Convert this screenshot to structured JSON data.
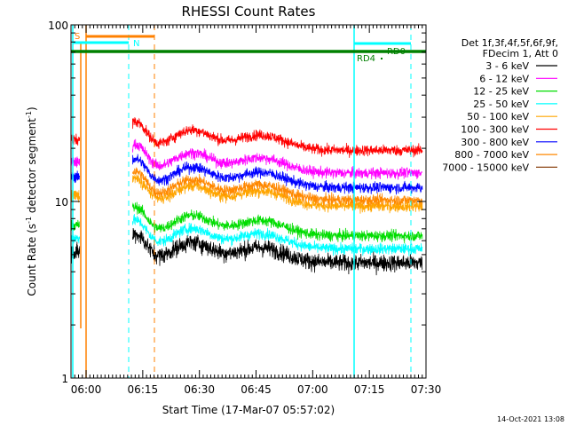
{
  "chart_data": {
    "type": "line",
    "title": "RHESSI Count Rates",
    "xlabel": "Start Time (17-Mar-07 05:57:02)",
    "ylabel_main": "Count Rate (s",
    "ylabel_sup1": "-1",
    "ylabel_mid": " detector segment",
    "ylabel_sup2": "-1",
    "ylabel_end": ")",
    "y_scale": "log",
    "ylim": [
      1,
      100
    ],
    "y_ticks": [
      {
        "value": 1,
        "label": "1"
      },
      {
        "value": 10,
        "label": "10"
      },
      {
        "value": 100,
        "label": "100"
      }
    ],
    "x_range_min": [
      356,
      450
    ],
    "x_ticks": [
      {
        "min": 360,
        "label": "06:00"
      },
      {
        "min": 375,
        "label": "06:15"
      },
      {
        "min": 390,
        "label": "06:30"
      },
      {
        "min": 405,
        "label": "06:45"
      },
      {
        "min": 420,
        "label": "07:00"
      },
      {
        "min": 435,
        "label": "07:15"
      },
      {
        "min": 450,
        "label": "07:30"
      }
    ],
    "legend_header": [
      "Det 1f,3f,4f,5f,6f,9f,",
      "FDecim 1, Att 0"
    ],
    "series": [
      {
        "name": "3 - 6 keV",
        "color": "#000000",
        "level": 4.5
      },
      {
        "name": "6 - 12 keV",
        "color": "#ff00ff",
        "level": 14.5
      },
      {
        "name": "12 - 25 keV",
        "color": "#00dd00",
        "level": 6.4
      },
      {
        "name": "25 - 50 keV",
        "color": "#00ffff",
        "level": 5.4
      },
      {
        "name": "50 - 100 keV",
        "color": "#ffa500",
        "level": 9.4
      },
      {
        "name": "100 - 300 keV",
        "color": "#ff0000",
        "level": 19.5
      },
      {
        "name": "300 - 800 keV",
        "color": "#0000ff",
        "level": 12.0
      },
      {
        "name": "800 - 7000 keV",
        "color": "#ff8800",
        "level": 10.2
      },
      {
        "name": "7000 - 15000 keV",
        "color": "#8b4513",
        "level": 8.5
      }
    ],
    "flags": [
      {
        "label": "S",
        "color": "#ff8000"
      },
      {
        "label": "N",
        "color": "#00ffff"
      },
      {
        "label": "RD0",
        "color": "#008000"
      },
      {
        "label": "RD4",
        "color": "#008000"
      }
    ]
  },
  "footer_date": "14-Oct-2021 13:08"
}
